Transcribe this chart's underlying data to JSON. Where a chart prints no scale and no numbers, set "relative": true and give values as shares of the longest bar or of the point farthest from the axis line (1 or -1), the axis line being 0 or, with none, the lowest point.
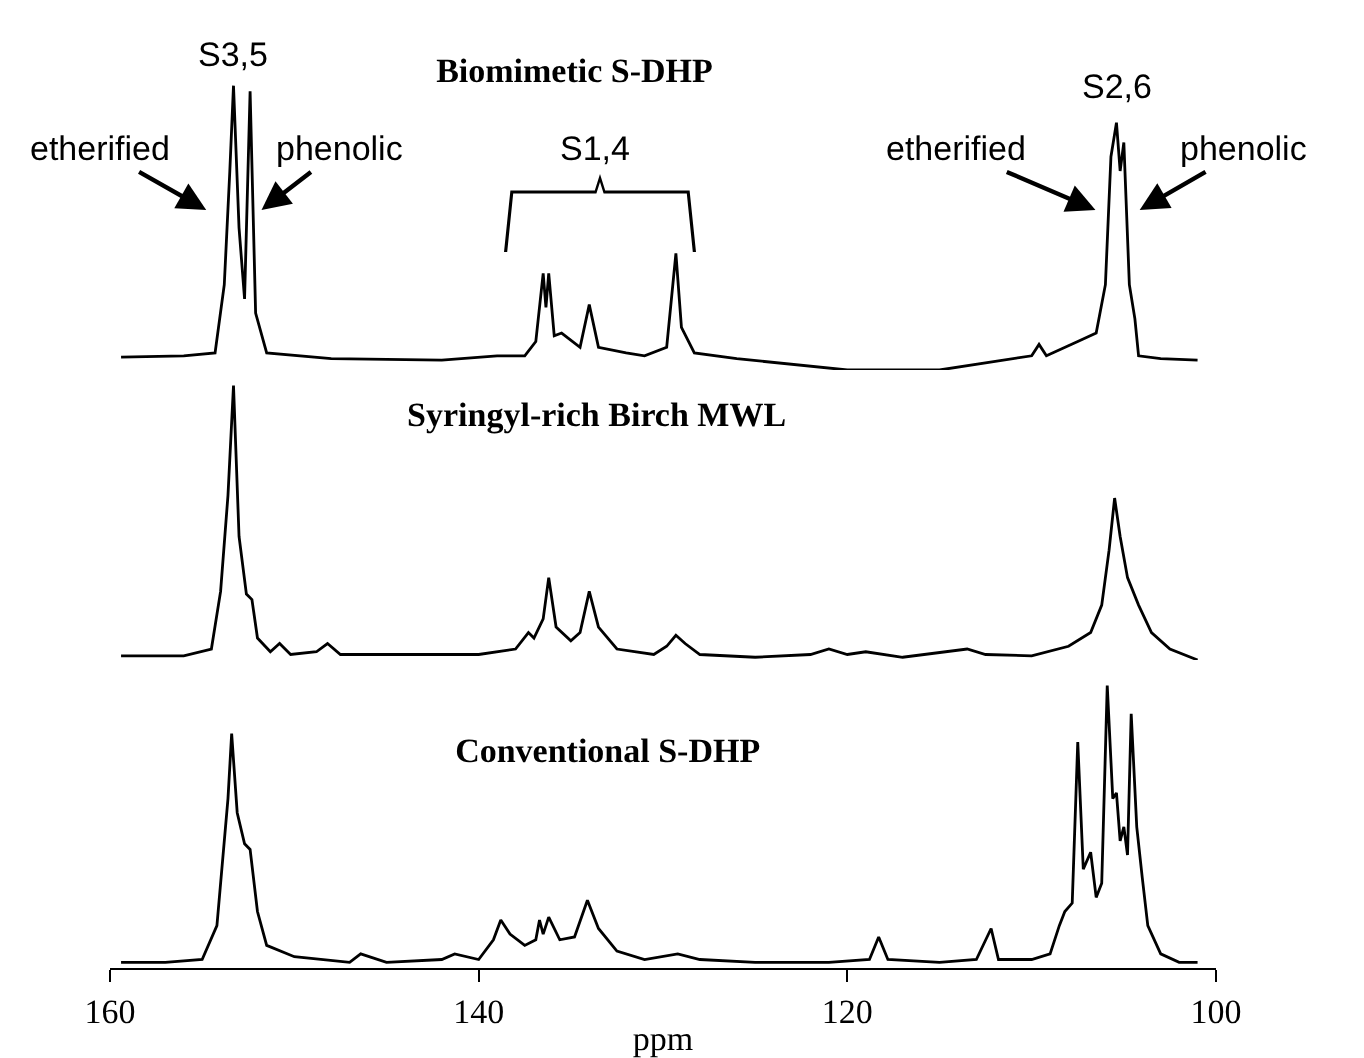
{
  "chart_data": [
    {
      "type": "line",
      "title": "Biomimetic S-DHP",
      "relative": true,
      "xlim": [
        160,
        100
      ],
      "tick_labels": false,
      "x": [
        159.4,
        156,
        154.3,
        153.8,
        153.5,
        153.3,
        153.0,
        152.7,
        152.4,
        152.1,
        151.5,
        148,
        142,
        139,
        137.5,
        136.9,
        136.5,
        136.35,
        136.2,
        135.9,
        135.5,
        134.5,
        134.0,
        133.5,
        132,
        131,
        129.8,
        129.3,
        129.0,
        128.3,
        126,
        120,
        115,
        110,
        109.6,
        109.2,
        107.5,
        106.5,
        106.0,
        105.7,
        105.4,
        105.2,
        105.0,
        104.7,
        104.4,
        104.2,
        103,
        101
      ],
      "series": [
        {
          "color": "#000000",
          "values": [
            0.045,
            0.05,
            0.06,
            0.3,
            0.7,
            1.0,
            0.5,
            0.25,
            0.98,
            0.2,
            0.06,
            0.04,
            0.035,
            0.05,
            0.05,
            0.1,
            0.34,
            0.22,
            0.34,
            0.12,
            0.13,
            0.08,
            0.23,
            0.08,
            0.06,
            0.05,
            0.08,
            0.41,
            0.15,
            0.06,
            0.04,
            0.0,
            0.0,
            0.05,
            0.09,
            0.05,
            0.1,
            0.13,
            0.3,
            0.75,
            0.87,
            0.7,
            0.8,
            0.3,
            0.18,
            0.05,
            0.04,
            0.035
          ]
        }
      ],
      "annotations": [
        "S3,5",
        "etherified",
        "phenolic",
        "S1,4",
        "S2,6",
        "etherified",
        "phenolic"
      ]
    },
    {
      "type": "line",
      "title": "Syringyl-rich Birch MWL",
      "relative": true,
      "xlim": [
        160,
        100
      ],
      "tick_labels": false,
      "x": [
        159.4,
        156,
        154.5,
        154,
        153.6,
        153.3,
        153.0,
        152.6,
        152.3,
        152,
        151.3,
        150.8,
        150.2,
        148.8,
        148.2,
        147.5,
        144,
        140,
        138,
        137.3,
        137,
        136.5,
        136.2,
        135.8,
        135,
        134.5,
        134.0,
        133.5,
        132.5,
        130.5,
        129.8,
        129.3,
        128.8,
        128,
        125,
        122,
        121,
        120,
        119,
        117,
        113.5,
        112.5,
        110,
        108,
        106.8,
        106.2,
        105.8,
        105.5,
        105.2,
        104.8,
        104.2,
        103.5,
        102.5,
        101
      ],
      "series": [
        {
          "color": "#000000",
          "values": [
            0.015,
            0.015,
            0.04,
            0.25,
            0.6,
            1.0,
            0.45,
            0.24,
            0.22,
            0.08,
            0.03,
            0.06,
            0.02,
            0.03,
            0.06,
            0.02,
            0.02,
            0.02,
            0.04,
            0.1,
            0.08,
            0.15,
            0.3,
            0.12,
            0.07,
            0.1,
            0.25,
            0.12,
            0.04,
            0.02,
            0.05,
            0.09,
            0.06,
            0.02,
            0.01,
            0.02,
            0.04,
            0.02,
            0.03,
            0.01,
            0.04,
            0.02,
            0.015,
            0.05,
            0.1,
            0.2,
            0.4,
            0.59,
            0.45,
            0.3,
            0.2,
            0.1,
            0.04,
            0.0
          ]
        }
      ]
    },
    {
      "type": "line",
      "title": "Conventional S-DHP",
      "relative": true,
      "xlim": [
        160,
        100
      ],
      "xticks": [
        160,
        140,
        120,
        100
      ],
      "xlabel": "ppm",
      "x": [
        159.4,
        157,
        155,
        154.2,
        153.6,
        153.4,
        153.1,
        152.7,
        152.4,
        152,
        151.5,
        150,
        147,
        146.4,
        145,
        142,
        141.3,
        140,
        139.2,
        138.8,
        138.3,
        137.5,
        136.9,
        136.7,
        136.5,
        136.2,
        135.6,
        134.8,
        134.1,
        133.5,
        132.5,
        131,
        129.2,
        128,
        125,
        121,
        118.8,
        118.3,
        117.8,
        115,
        113,
        112.2,
        111.8,
        110,
        109,
        108.5,
        108.2,
        107.8,
        107.5,
        107.2,
        106.8,
        106.5,
        106.2,
        105.9,
        105.6,
        105.4,
        105.2,
        105.0,
        104.8,
        104.6,
        104.3,
        104.0,
        103.7,
        103,
        102,
        101
      ],
      "series": [
        {
          "color": "#000000",
          "values": [
            0.02,
            0.02,
            0.03,
            0.15,
            0.6,
            0.83,
            0.55,
            0.44,
            0.42,
            0.2,
            0.08,
            0.04,
            0.02,
            0.05,
            0.02,
            0.03,
            0.05,
            0.03,
            0.1,
            0.17,
            0.12,
            0.08,
            0.1,
            0.17,
            0.12,
            0.18,
            0.1,
            0.11,
            0.24,
            0.14,
            0.06,
            0.03,
            0.05,
            0.03,
            0.02,
            0.02,
            0.03,
            0.11,
            0.03,
            0.02,
            0.03,
            0.14,
            0.03,
            0.03,
            0.05,
            0.15,
            0.2,
            0.23,
            0.8,
            0.35,
            0.41,
            0.25,
            0.3,
            1.0,
            0.6,
            0.62,
            0.45,
            0.5,
            0.4,
            0.9,
            0.5,
            0.32,
            0.15,
            0.05,
            0.02,
            0.02
          ]
        }
      ]
    }
  ]
}
